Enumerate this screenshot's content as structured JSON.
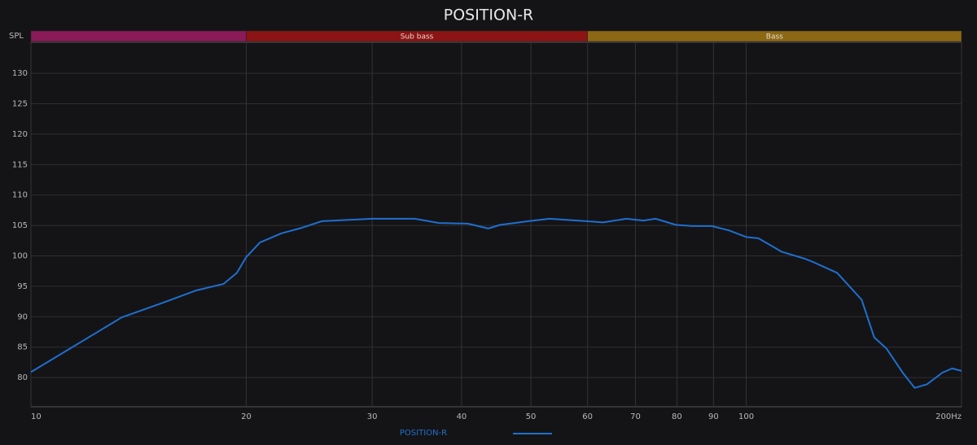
{
  "chart_data": {
    "type": "line",
    "title": "POSITION-R",
    "y_label": "SPL",
    "xscale": "log",
    "xlim": [
      10,
      200
    ],
    "ylim": [
      75.2,
      135.1
    ],
    "xticks": [
      10,
      20,
      30,
      40,
      50,
      60,
      70,
      80,
      90,
      100,
      {
        "value": 200,
        "label": "200Hz"
      }
    ],
    "yticks": [
      80,
      85,
      90,
      95,
      100,
      105,
      110,
      115,
      120,
      125,
      130
    ],
    "grid": true,
    "bands": [
      {
        "from": 10,
        "to": 20,
        "color": "#8a1a58"
      },
      {
        "label": "Sub bass",
        "from": 20,
        "to": 60,
        "color": "#8c1414"
      },
      {
        "label": "Bass",
        "from": 60,
        "to": 200,
        "color": "#8c6814"
      }
    ],
    "x": [
      10,
      13.4,
      15.3,
      17,
      18.6,
      19.4,
      20,
      20.9,
      22.4,
      23.9,
      25.5,
      30,
      34.4,
      37.2,
      40.8,
      43.6,
      45.3,
      49.6,
      53.1,
      59.8,
      63.1,
      68,
      71.8,
      74.7,
      79.7,
      84.2,
      89.5,
      94.5,
      100,
      104,
      112,
      121,
      124,
      134,
      145,
      151,
      157,
      165.5,
      172,
      179,
      188,
      194,
      200
    ],
    "series": [
      {
        "name": "POSITION-R",
        "color": "#1f6fd0",
        "values": [
          80.9,
          89.9,
          92.3,
          94.3,
          95.4,
          97.2,
          99.8,
          102.2,
          103.7,
          104.6,
          105.7,
          106.1,
          106.1,
          105.4,
          105.3,
          104.5,
          105.1,
          105.7,
          106.1,
          105.7,
          105.5,
          106.1,
          105.8,
          106.1,
          105.1,
          104.9,
          104.9,
          104.2,
          103.1,
          102.9,
          100.7,
          99.5,
          99.0,
          97.2,
          92.8,
          86.6,
          84.8,
          80.8,
          78.3,
          78.9,
          80.8,
          81.5,
          81.1
        ]
      }
    ],
    "legend": "bottom"
  }
}
